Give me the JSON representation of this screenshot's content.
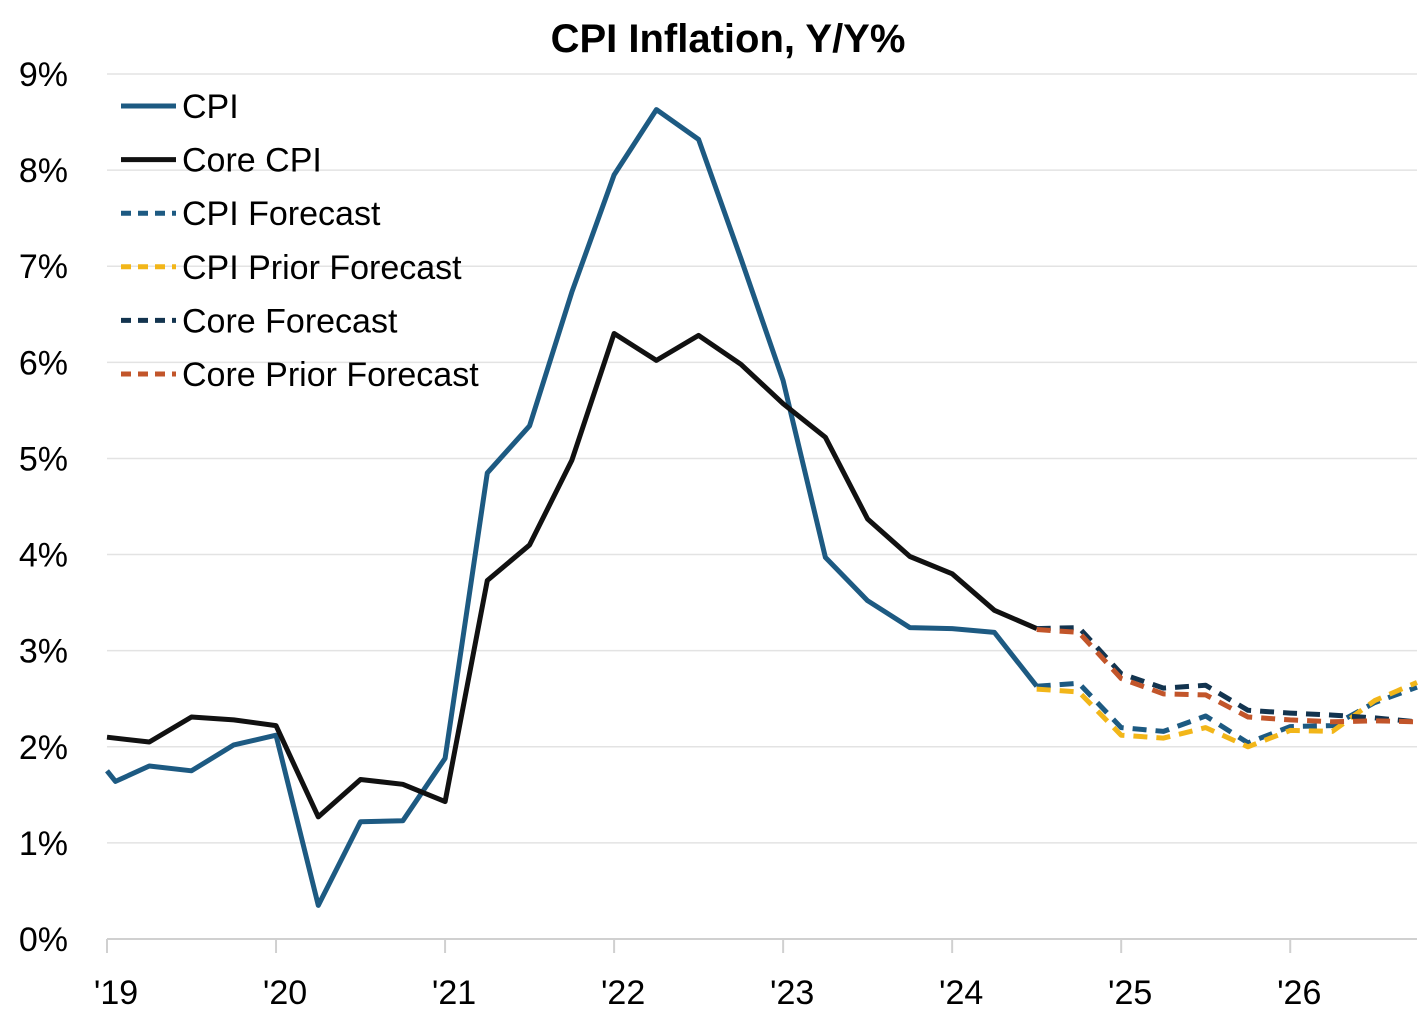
{
  "chart_data": {
    "type": "line",
    "title": "CPI Inflation, Y/Y%",
    "xlabel": "",
    "ylabel": "",
    "ylim": [
      0,
      9
    ],
    "xlim": [
      2019.0,
      2026.75
    ],
    "y_ticks": [
      0,
      1,
      2,
      3,
      4,
      5,
      6,
      7,
      8,
      9
    ],
    "y_tick_labels": [
      "0%",
      "1%",
      "2%",
      "3%",
      "4%",
      "5%",
      "6%",
      "7%",
      "8%",
      "9%"
    ],
    "x_ticks": [
      2019,
      2020,
      2021,
      2022,
      2023,
      2024,
      2025,
      2026
    ],
    "x_tick_labels": [
      "'19",
      "'20",
      "'21",
      "'22",
      "'23",
      "'24",
      "'25",
      "'26"
    ],
    "grid": "horizontal",
    "legend_position": "top-left",
    "series": [
      {
        "name": "CPI",
        "color": "#1d5a82",
        "style": "solid",
        "x": [
          2019.0,
          2019.05,
          2019.25,
          2019.5,
          2019.75,
          2020.0,
          2020.25,
          2020.5,
          2020.75,
          2021.0,
          2021.25,
          2021.5,
          2021.75,
          2022.0,
          2022.25,
          2022.5,
          2022.75,
          2023.0,
          2023.25,
          2023.5,
          2023.75,
          2024.0,
          2024.25,
          2024.5
        ],
        "y": [
          1.75,
          1.64,
          1.8,
          1.75,
          2.02,
          2.12,
          0.35,
          1.22,
          1.23,
          1.88,
          4.85,
          5.34,
          6.73,
          7.95,
          8.63,
          8.32,
          7.08,
          5.81,
          3.97,
          3.52,
          3.24,
          3.23,
          3.19,
          2.63
        ]
      },
      {
        "name": "Core CPI",
        "color": "#111111",
        "style": "solid",
        "x": [
          2019.0,
          2019.25,
          2019.5,
          2019.75,
          2020.0,
          2020.25,
          2020.5,
          2020.75,
          2021.0,
          2021.25,
          2021.5,
          2021.75,
          2022.0,
          2022.25,
          2022.5,
          2022.75,
          2023.0,
          2023.25,
          2023.5,
          2023.75,
          2024.0,
          2024.25,
          2024.5
        ],
        "y": [
          2.1,
          2.05,
          2.31,
          2.28,
          2.22,
          1.27,
          1.66,
          1.61,
          1.43,
          3.73,
          4.1,
          4.98,
          6.3,
          6.02,
          6.28,
          5.98,
          5.57,
          5.22,
          4.37,
          3.98,
          3.8,
          3.42,
          3.23
        ]
      },
      {
        "name": "CPI Forecast",
        "color": "#1d5a82",
        "style": "dashed",
        "x": [
          2024.5,
          2024.75,
          2025.0,
          2025.25,
          2025.5,
          2025.75,
          2026.0,
          2026.25,
          2026.5,
          2026.75
        ],
        "y": [
          2.63,
          2.66,
          2.2,
          2.16,
          2.32,
          2.04,
          2.21,
          2.22,
          2.46,
          2.62
        ]
      },
      {
        "name": "CPI Prior Forecast",
        "color": "#f2b619",
        "style": "dashed",
        "x": [
          2024.5,
          2024.75,
          2025.0,
          2025.25,
          2025.5,
          2025.75,
          2026.0,
          2026.25,
          2026.5,
          2026.75
        ],
        "y": [
          2.6,
          2.57,
          2.12,
          2.09,
          2.2,
          2.0,
          2.17,
          2.16,
          2.48,
          2.67
        ]
      },
      {
        "name": "Core Forecast",
        "color": "#13344f",
        "style": "dashed",
        "x": [
          2024.5,
          2024.75,
          2025.0,
          2025.25,
          2025.5,
          2025.75,
          2026.0,
          2026.25,
          2026.5,
          2026.75
        ],
        "y": [
          3.23,
          3.24,
          2.76,
          2.61,
          2.64,
          2.38,
          2.35,
          2.33,
          2.3,
          2.26
        ]
      },
      {
        "name": "Core Prior Forecast",
        "color": "#c2552a",
        "style": "dashed",
        "x": [
          2024.5,
          2024.75,
          2025.0,
          2025.25,
          2025.5,
          2025.75,
          2026.0,
          2026.25,
          2026.5,
          2026.75
        ],
        "y": [
          3.22,
          3.19,
          2.71,
          2.55,
          2.54,
          2.31,
          2.28,
          2.26,
          2.27,
          2.26
        ]
      }
    ]
  }
}
